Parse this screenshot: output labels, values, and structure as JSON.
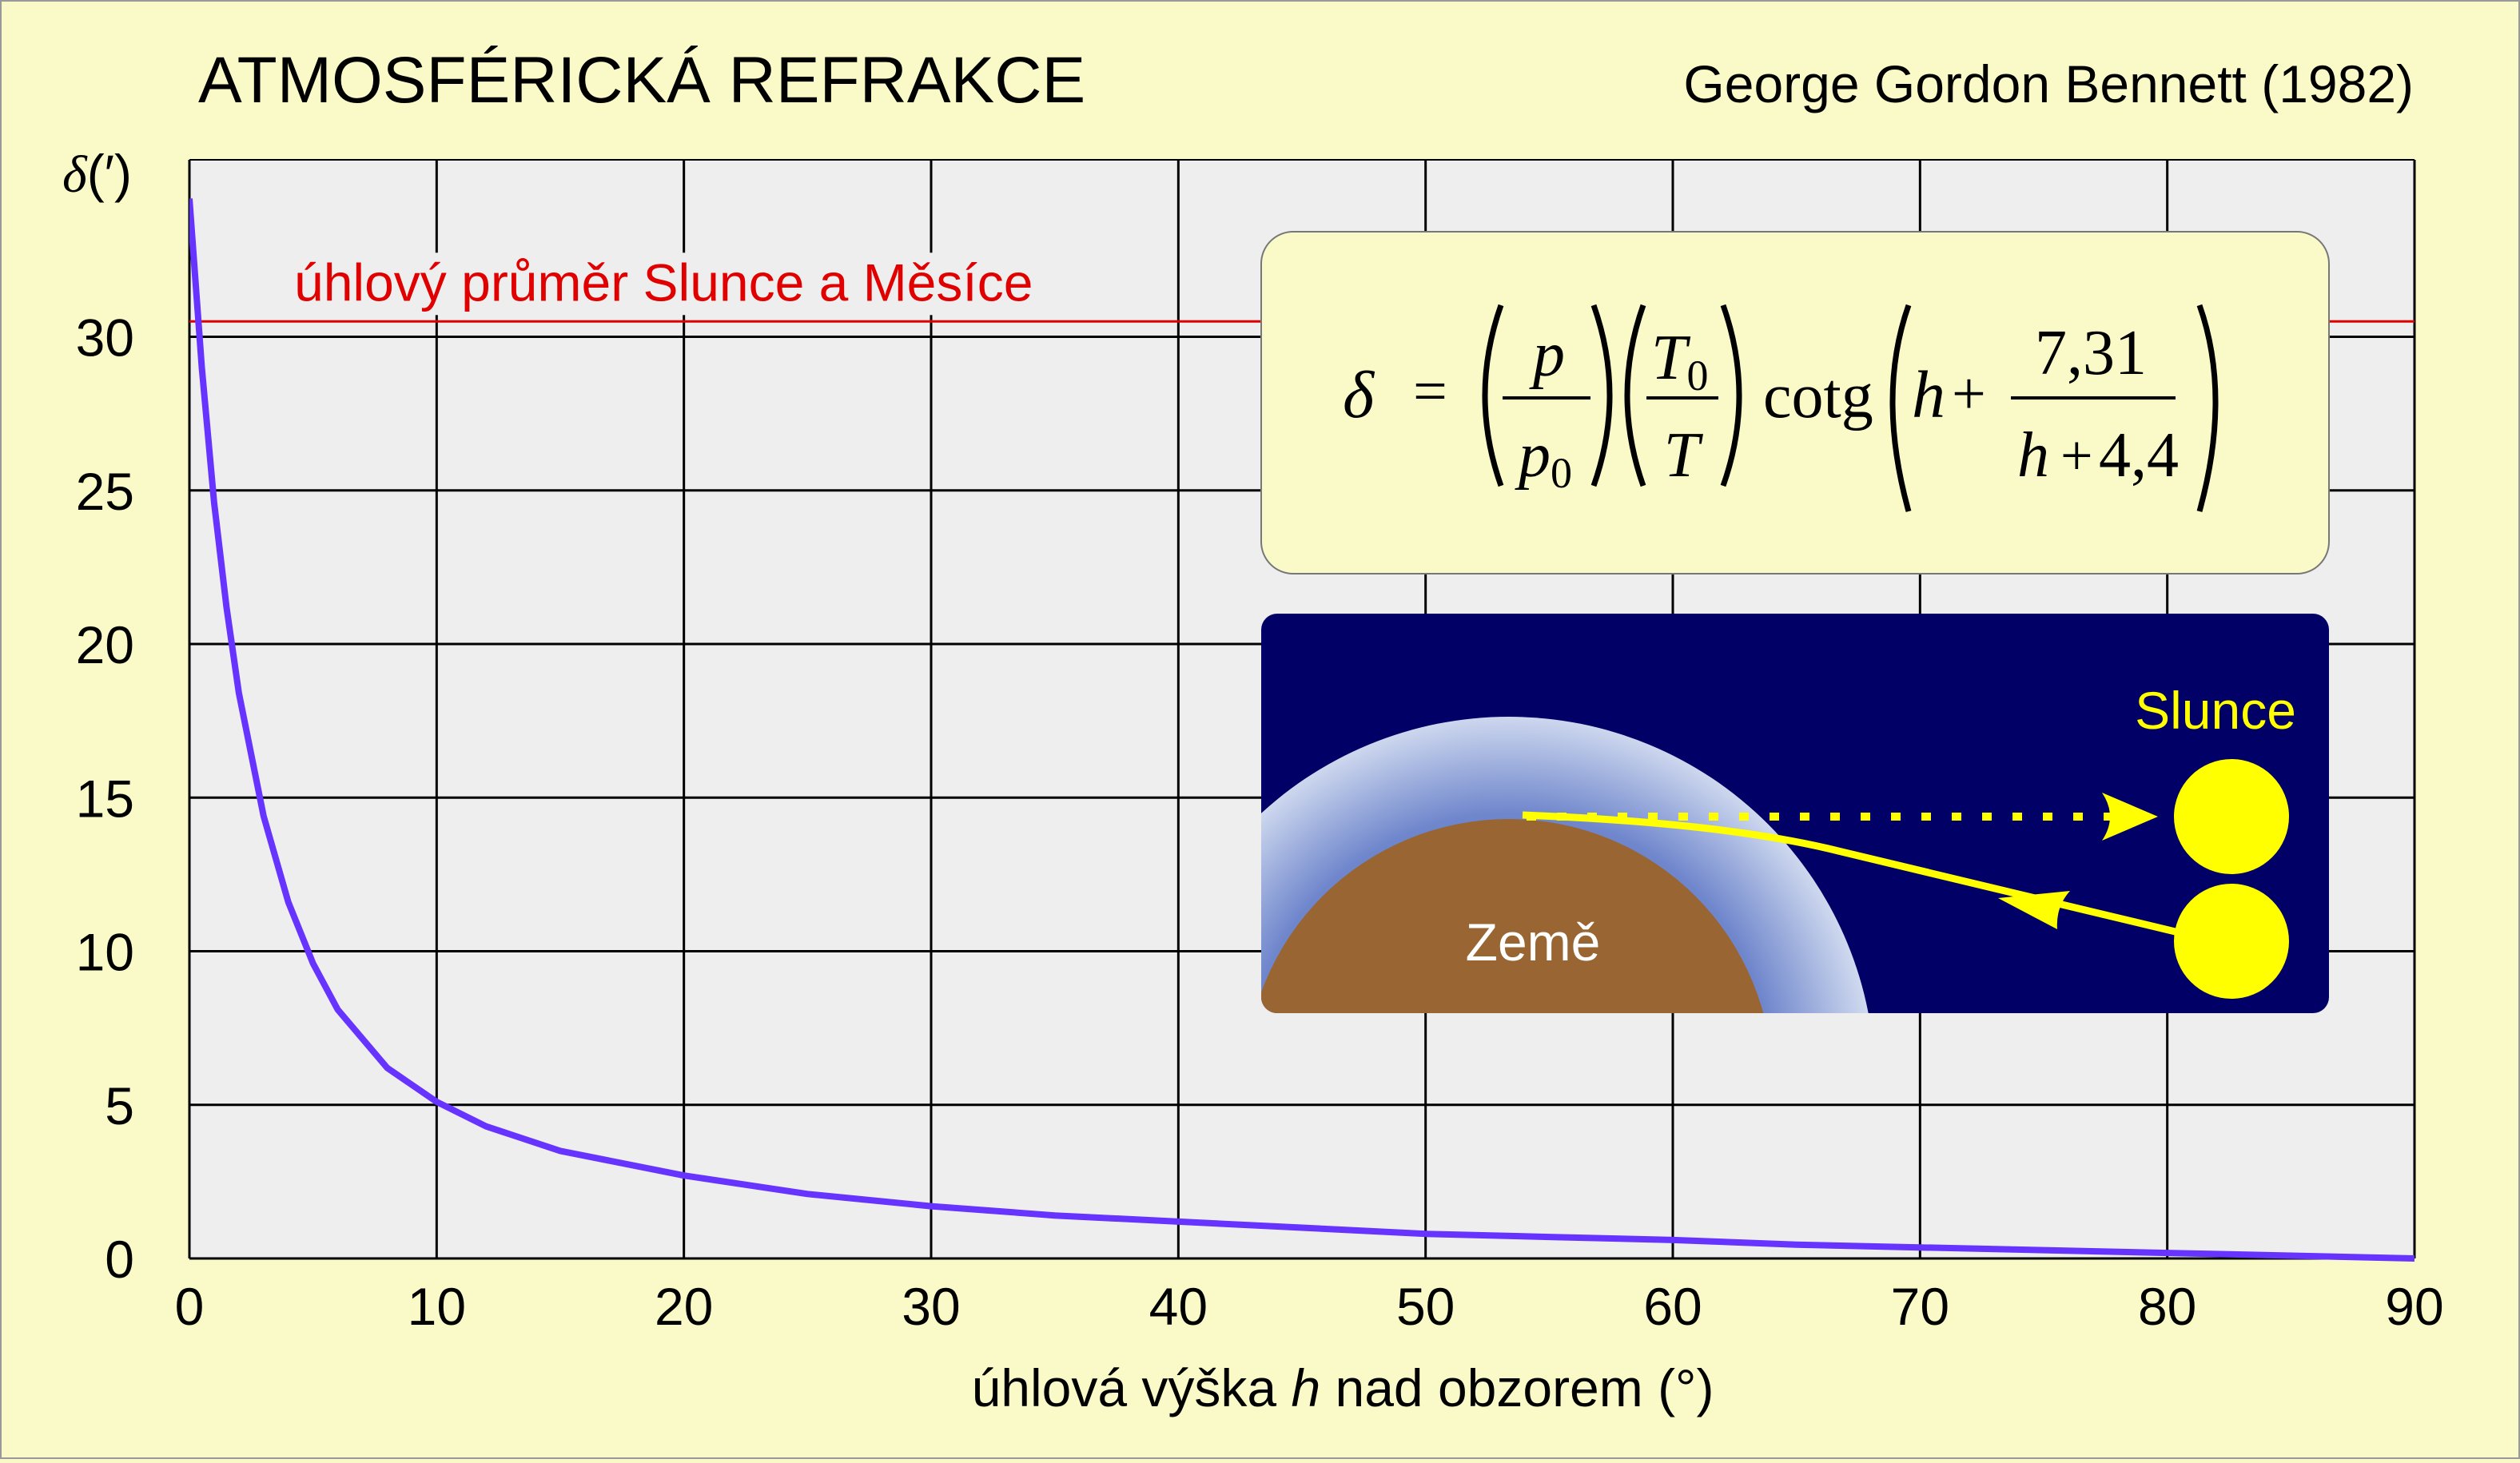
{
  "chart_data": {
    "type": "line",
    "title": "ATMOSFÉRICKÁ REFRAKCE",
    "attribution": "George Gordon Bennett (1982)",
    "xlabel_parts": [
      "úhlová výška ",
      "h",
      " nad obzorem (°)"
    ],
    "ylabel_symbol": "δ",
    "ylabel_unit": "(′)",
    "xlim": [
      0,
      90
    ],
    "ylim": [
      0,
      35
    ],
    "grid": true,
    "x_ticks": [
      0,
      10,
      20,
      30,
      40,
      50,
      60,
      70,
      80,
      90
    ],
    "y_ticks": [
      0,
      5,
      10,
      15,
      20,
      25,
      30
    ],
    "series": [
      {
        "color": "#6633ff",
        "x": [
          0,
          0.5,
          1,
          1.5,
          2,
          3,
          4,
          5,
          6,
          8,
          10,
          12,
          15,
          20,
          25,
          30,
          35,
          40,
          45,
          50,
          55,
          60,
          65,
          70,
          75,
          80,
          85,
          90
        ],
        "y": [
          34.5,
          29.0,
          24.6,
          21.2,
          18.4,
          14.4,
          11.6,
          9.6,
          8.1,
          6.2,
          5.1,
          4.3,
          3.5,
          2.7,
          2.1,
          1.7,
          1.4,
          1.2,
          1.0,
          0.8,
          0.7,
          0.6,
          0.45,
          0.36,
          0.27,
          0.18,
          0.09,
          0.0
        ]
      }
    ],
    "reference_line": {
      "label": "úhlový průměr Slunce a Měsíce",
      "y": 30.5,
      "color": "#e00000"
    },
    "formula": {
      "lhs": "δ",
      "eq": "=",
      "p": "p",
      "p0": "p",
      "p0_sub": "0",
      "T0": "T",
      "T0_sub": "0",
      "T": "T",
      "cotg": "cotg",
      "h": "h",
      "plus": "+",
      "num": "7,31",
      "den_h": "h",
      "den_plus": "+",
      "den_val": "4,4"
    },
    "diagram": {
      "earth_label": "Země",
      "sun_label": "Slunce"
    }
  }
}
